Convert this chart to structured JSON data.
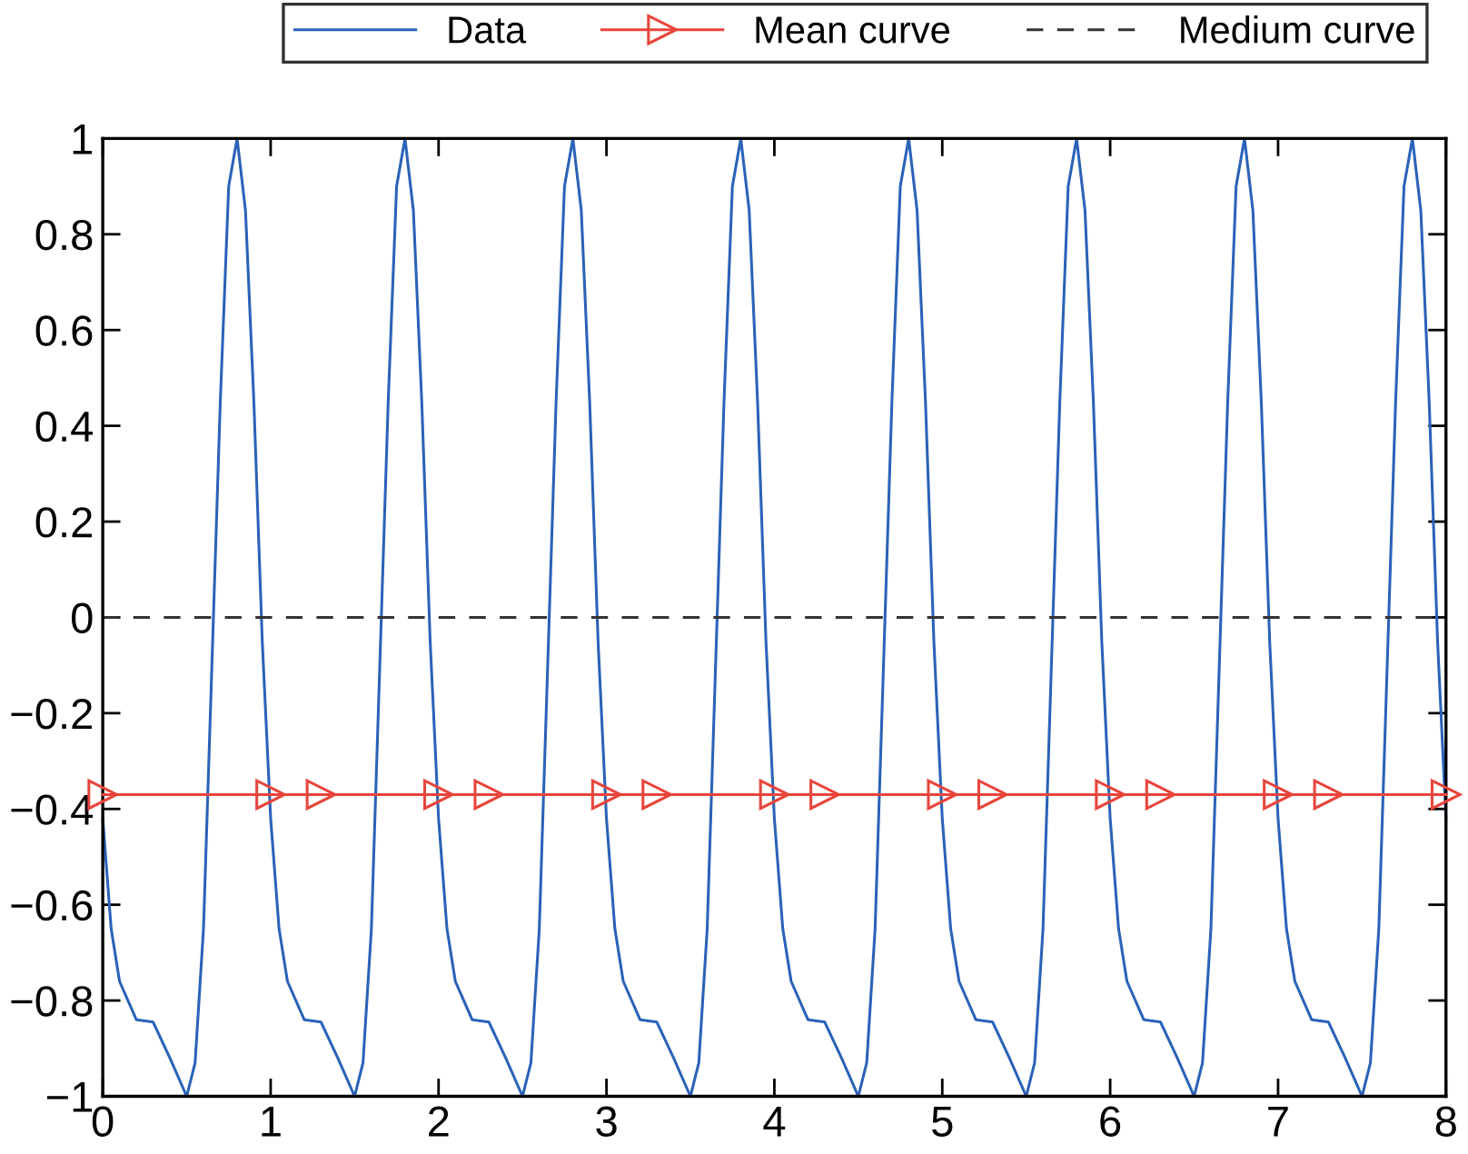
{
  "chart_data": {
    "type": "line",
    "xlim": [
      0,
      8
    ],
    "ylim": [
      -1,
      1
    ],
    "xticks": [
      0,
      1,
      2,
      3,
      4,
      5,
      6,
      7,
      8
    ],
    "yticks": [
      {
        "value": -1,
        "label": "−1"
      },
      {
        "value": -0.8,
        "label": "−0.8"
      },
      {
        "value": -0.6,
        "label": "−0.6"
      },
      {
        "value": -0.4,
        "label": "−0.4"
      },
      {
        "value": -0.2,
        "label": "−0.2"
      },
      0,
      0.2,
      0.4,
      0.6,
      0.8,
      1
    ],
    "grid": false,
    "legend": "top right",
    "series": [
      {
        "name": "Data",
        "color": "#2a62b8",
        "marker": "none",
        "line_style": "solid",
        "x": [
          0,
          0.05,
          0.1,
          0.2,
          0.3,
          0.4,
          0.5,
          0.55,
          0.6,
          0.65,
          0.7,
          0.75,
          0.8,
          0.85,
          0.9,
          0.95,
          1,
          1.05,
          1.1,
          1.2,
          1.3,
          1.4,
          1.5,
          1.55,
          1.6,
          1.65,
          1.7,
          1.75,
          1.8,
          1.85,
          1.9,
          1.95,
          2,
          2.05,
          2.1,
          2.2,
          2.3,
          2.4,
          2.5,
          2.55,
          2.6,
          2.65,
          2.7,
          2.75,
          2.8,
          2.85,
          2.9,
          2.95,
          3,
          3.05,
          3.1,
          3.2,
          3.3,
          3.4,
          3.5,
          3.55,
          3.6,
          3.65,
          3.7,
          3.75,
          3.8,
          3.85,
          3.9,
          3.95,
          4,
          4.05,
          4.1,
          4.2,
          4.3,
          4.4,
          4.5,
          4.55,
          4.6,
          4.65,
          4.7,
          4.75,
          4.8,
          4.85,
          4.9,
          4.95,
          5,
          5.05,
          5.1,
          5.2,
          5.3,
          5.4,
          5.5,
          5.55,
          5.6,
          5.65,
          5.7,
          5.75,
          5.8,
          5.85,
          5.9,
          5.95,
          6,
          6.05,
          6.1,
          6.2,
          6.3,
          6.4,
          6.5,
          6.55,
          6.6,
          6.65,
          6.7,
          6.75,
          6.8,
          6.85,
          6.9,
          6.95,
          7,
          7.05,
          7.1,
          7.2,
          7.3,
          7.4,
          7.5,
          7.55,
          7.6,
          7.65,
          7.7,
          7.75,
          7.8,
          7.85,
          7.9,
          7.95,
          8
        ],
        "values": [
          -0.42,
          -0.65,
          -0.76,
          -0.84,
          -0.845,
          -0.92,
          -1,
          -0.93,
          -0.65,
          -0.1,
          0.45,
          0.9,
          1,
          0.85,
          0.45,
          -0.05,
          -0.42,
          -0.65,
          -0.76,
          -0.84,
          -0.845,
          -0.92,
          -1,
          -0.93,
          -0.65,
          -0.1,
          0.45,
          0.9,
          1,
          0.85,
          0.45,
          -0.05,
          -0.42,
          -0.65,
          -0.76,
          -0.84,
          -0.845,
          -0.92,
          -1,
          -0.93,
          -0.65,
          -0.1,
          0.45,
          0.9,
          1,
          0.85,
          0.45,
          -0.05,
          -0.42,
          -0.65,
          -0.76,
          -0.84,
          -0.845,
          -0.92,
          -1,
          -0.93,
          -0.65,
          -0.1,
          0.45,
          0.9,
          1,
          0.85,
          0.45,
          -0.05,
          -0.42,
          -0.65,
          -0.76,
          -0.84,
          -0.845,
          -0.92,
          -1,
          -0.93,
          -0.65,
          -0.1,
          0.45,
          0.9,
          1,
          0.85,
          0.45,
          -0.05,
          -0.42,
          -0.65,
          -0.76,
          -0.84,
          -0.845,
          -0.92,
          -1,
          -0.93,
          -0.65,
          -0.1,
          0.45,
          0.9,
          1,
          0.85,
          0.45,
          -0.05,
          -0.42,
          -0.65,
          -0.76,
          -0.84,
          -0.845,
          -0.92,
          -1,
          -0.93,
          -0.65,
          -0.1,
          0.45,
          0.9,
          1,
          0.85,
          0.45,
          -0.05,
          -0.42,
          -0.65,
          -0.76,
          -0.84,
          -0.845,
          -0.92,
          -1,
          -0.93,
          -0.65,
          -0.1,
          0.45,
          0.9,
          1,
          0.85,
          0.45,
          -0.05,
          -0.42
        ]
      },
      {
        "name": "Mean curve",
        "color": "#e8453c",
        "marker": "triangle",
        "line_style": "solid",
        "x": [
          0,
          1,
          1.3,
          2,
          2.3,
          3,
          3.3,
          4,
          4.3,
          5,
          5.3,
          6,
          6.3,
          7,
          7.3,
          8
        ],
        "values": [
          -0.37,
          -0.37,
          -0.37,
          -0.37,
          -0.37,
          -0.37,
          -0.37,
          -0.37,
          -0.37,
          -0.37,
          -0.37,
          -0.37,
          -0.37,
          -0.37,
          -0.37,
          -0.37
        ]
      },
      {
        "name": "Medium curve",
        "color": "#333333",
        "marker": "none",
        "line_style": "dashed",
        "x": [
          0,
          8
        ],
        "values": [
          0,
          0
        ]
      }
    ]
  }
}
